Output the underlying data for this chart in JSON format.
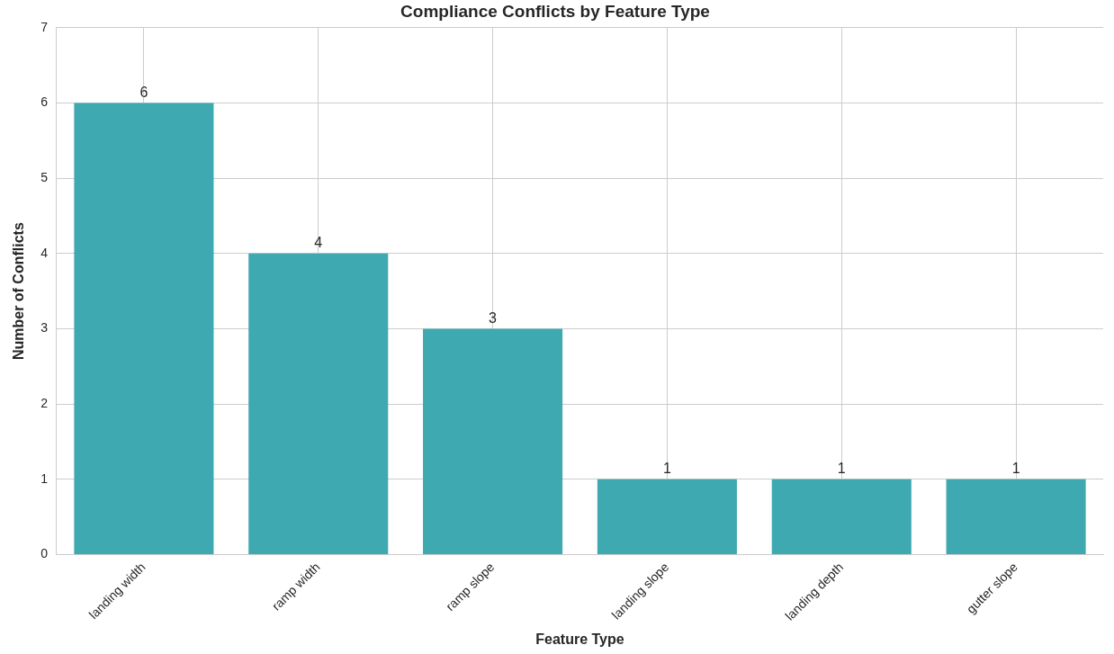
{
  "chart_data": {
    "type": "bar",
    "title": "Compliance Conflicts by Feature Type",
    "xlabel": "Feature Type",
    "ylabel": "Number of Conflicts",
    "categories": [
      "landing width",
      "ramp width",
      "ramp slope",
      "landing slope",
      "landing depth",
      "gutter slope"
    ],
    "values": [
      6,
      4,
      3,
      1,
      1,
      1
    ],
    "color": "#3ea9b0",
    "ylim": [
      0,
      7
    ],
    "yticks": [
      0,
      1,
      2,
      3,
      4,
      5,
      6,
      7
    ],
    "grid": true,
    "data_labels": true
  }
}
